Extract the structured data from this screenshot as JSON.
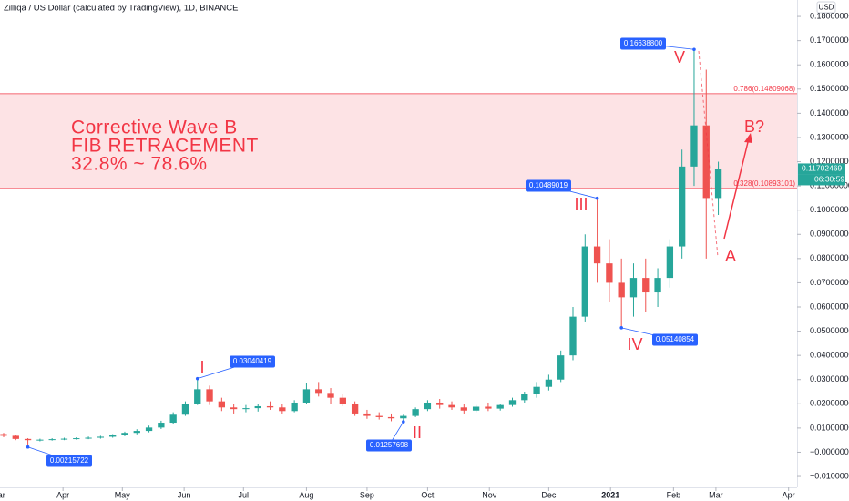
{
  "chart_data": {
    "type": "candlestick",
    "title": "Zilliqa / US Dollar (calculated by TradingView), 1D, BINANCE",
    "currency": "USD",
    "up_color": "#26a69a",
    "down_color": "#ef5350",
    "series": {
      "open": [
        0.0075,
        0.0068,
        0.0055,
        0.005,
        0.0052,
        0.0054,
        0.0056,
        0.0058,
        0.006,
        0.0064,
        0.007,
        0.008,
        0.0088,
        0.0102,
        0.0122,
        0.0155,
        0.02,
        0.026,
        0.021,
        0.0185,
        0.0178,
        0.0182,
        0.019,
        0.0185,
        0.017,
        0.0205,
        0.026,
        0.0245,
        0.0225,
        0.02,
        0.016,
        0.015,
        0.0145,
        0.014,
        0.015,
        0.0178,
        0.0205,
        0.0195,
        0.0185,
        0.0172,
        0.0188,
        0.018,
        0.0195,
        0.0215,
        0.024,
        0.027,
        0.03,
        0.04,
        0.056,
        0.085,
        0.078,
        0.07,
        0.064,
        0.072,
        0.066,
        0.072,
        0.085,
        0.118,
        0.135,
        0.105
      ],
      "high": [
        0.008,
        0.007,
        0.0058,
        0.0056,
        0.0058,
        0.006,
        0.0062,
        0.0065,
        0.0068,
        0.0075,
        0.0085,
        0.0095,
        0.011,
        0.013,
        0.0165,
        0.021,
        0.03040419,
        0.0275,
        0.0225,
        0.02,
        0.0195,
        0.02,
        0.021,
        0.02,
        0.0215,
        0.0285,
        0.029,
        0.0265,
        0.024,
        0.021,
        0.0175,
        0.0165,
        0.016,
        0.0155,
        0.0185,
        0.0215,
        0.022,
        0.021,
        0.02,
        0.0195,
        0.0205,
        0.02,
        0.0225,
        0.025,
        0.029,
        0.032,
        0.042,
        0.06,
        0.09,
        0.10489019,
        0.088,
        0.08,
        0.078,
        0.08,
        0.076,
        0.088,
        0.125,
        0.166388,
        0.158,
        0.12
      ],
      "low": [
        0.0062,
        0.005,
        0.00215722,
        0.0045,
        0.0048,
        0.005,
        0.0052,
        0.0054,
        0.0056,
        0.006,
        0.0066,
        0.0074,
        0.0082,
        0.0096,
        0.0115,
        0.015,
        0.0195,
        0.0195,
        0.017,
        0.016,
        0.0165,
        0.0168,
        0.0175,
        0.016,
        0.0165,
        0.02,
        0.023,
        0.02,
        0.019,
        0.015,
        0.0138,
        0.0135,
        0.0128,
        0.01257698,
        0.0145,
        0.017,
        0.018,
        0.0175,
        0.016,
        0.0165,
        0.017,
        0.0172,
        0.0188,
        0.0205,
        0.0225,
        0.0255,
        0.029,
        0.038,
        0.054,
        0.07,
        0.062,
        0.05140854,
        0.056,
        0.058,
        0.06,
        0.068,
        0.08,
        0.11,
        0.08,
        0.098
      ],
      "close": [
        0.0068,
        0.0055,
        0.005,
        0.0052,
        0.0054,
        0.0056,
        0.0058,
        0.006,
        0.0064,
        0.007,
        0.008,
        0.0088,
        0.0102,
        0.0122,
        0.0155,
        0.02,
        0.026,
        0.021,
        0.0185,
        0.0178,
        0.0182,
        0.019,
        0.0185,
        0.017,
        0.0205,
        0.026,
        0.0245,
        0.0225,
        0.02,
        0.016,
        0.015,
        0.0145,
        0.014,
        0.015,
        0.0178,
        0.0205,
        0.0195,
        0.0185,
        0.0172,
        0.0188,
        0.018,
        0.0195,
        0.0215,
        0.024,
        0.027,
        0.03,
        0.04,
        0.056,
        0.085,
        0.078,
        0.07,
        0.064,
        0.072,
        0.066,
        0.072,
        0.085,
        0.118,
        0.135,
        0.105,
        0.117
      ]
    },
    "xlim": [
      -0.3,
      65.5
    ],
    "xticks": [
      {
        "value": -0.45,
        "label": "Mar"
      },
      {
        "value": 4.9,
        "label": "Apr"
      },
      {
        "value": 9.8,
        "label": "May"
      },
      {
        "value": 14.9,
        "label": "Jun"
      },
      {
        "value": 19.8,
        "label": "Jul"
      },
      {
        "value": 25.0,
        "label": "Aug"
      },
      {
        "value": 30.0,
        "label": "Sep"
      },
      {
        "value": 35.0,
        "label": "Oct"
      },
      {
        "value": 40.1,
        "label": "Nov"
      },
      {
        "value": 45.0,
        "label": "Dec"
      },
      {
        "value": 50.1,
        "label": "2021"
      },
      {
        "value": 55.3,
        "label": "Feb"
      },
      {
        "value": 58.8,
        "label": "Mar"
      },
      {
        "value": 64.8,
        "label": "Apr"
      }
    ],
    "ylim": [
      -0.0145,
      0.1868
    ],
    "yticks": [
      {
        "value": 0.18,
        "label": "0.18000000"
      },
      {
        "value": 0.17,
        "label": "0.17000000"
      },
      {
        "value": 0.16,
        "label": "0.16000000"
      },
      {
        "value": 0.15,
        "label": "0.15000000"
      },
      {
        "value": 0.14,
        "label": "0.14000000"
      },
      {
        "value": 0.13,
        "label": "0.13000000"
      },
      {
        "value": 0.12,
        "label": "0.12000000"
      },
      {
        "value": 0.11,
        "label": "0.11000000"
      },
      {
        "value": 0.1,
        "label": "0.10000000"
      },
      {
        "value": 0.09,
        "label": "0.09000000"
      },
      {
        "value": 0.08,
        "label": "0.08000000"
      },
      {
        "value": 0.07,
        "label": "0.07000000"
      },
      {
        "value": 0.06,
        "label": "0.06000000"
      },
      {
        "value": 0.05,
        "label": "0.05000000"
      },
      {
        "value": 0.04,
        "label": "0.04000000"
      },
      {
        "value": 0.03,
        "label": "0.03000000"
      },
      {
        "value": 0.02,
        "label": "0.02000000"
      },
      {
        "value": 0.01,
        "label": "0.01000000"
      },
      {
        "value": 0,
        "label": "−0.00000000"
      },
      {
        "value": -0.01,
        "label": "−0.01000000"
      }
    ],
    "fib_levels": {
      "values": [
        0.14809068,
        0.10893101
      ],
      "value_labels": [
        "0.786(0.14809068)",
        "0.328(0.10893101)"
      ],
      "color": "#f23645"
    },
    "last_price": 0.11702469,
    "countdown": "06:30:59",
    "annotations": [
      "Corrective Wave B",
      "FIB RETRACEMENT",
      "32.8% ~ 78.6%"
    ],
    "annotation_color": "#f23645",
    "waves": [
      "I",
      "II",
      "III",
      "IV",
      "V",
      "A",
      "B?"
    ],
    "callouts": {
      "x": [
        16,
        2,
        33,
        49,
        51,
        57
      ],
      "values": [
        0.03040419,
        0.00215722,
        0.01257698,
        0.10489019,
        0.05140854,
        0.166388
      ],
      "value_labels": [
        "0.03040419",
        "0.00215722",
        "0.01257698",
        "0.10489019",
        "0.05140854",
        "0.16638800"
      ],
      "color": "#2962ff"
    }
  }
}
